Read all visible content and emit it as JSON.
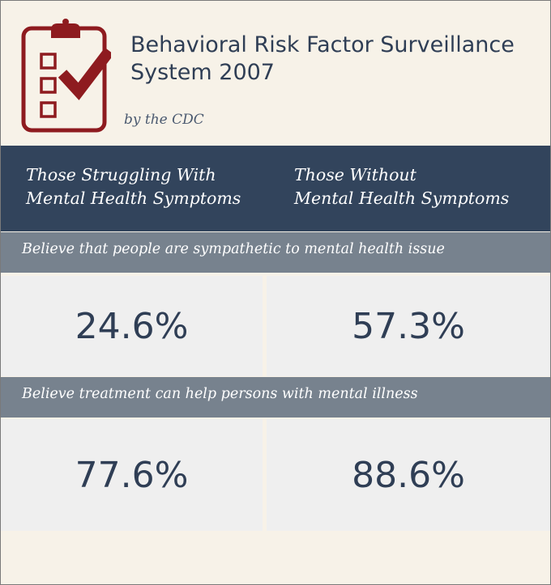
{
  "header": {
    "title_line1": "Behavioral Risk Factor Surveillance",
    "title_line2": "System 2007",
    "byline": "by the CDC",
    "logo_icon": "clipboard-checklist-icon",
    "logo_color": "#8e1b1f"
  },
  "columns": {
    "left_line1": "Those Struggling With",
    "left_line2": "Mental Health Symptoms",
    "right_line1": "Those Without",
    "right_line2": "Mental Health Symptoms"
  },
  "rows": [
    {
      "question": "Believe that people are sympathetic to mental health issue",
      "with_symptoms": "24.6%",
      "without_symptoms": "57.3%"
    },
    {
      "question": "Believe treatment can help persons with mental illness",
      "with_symptoms": "77.6%",
      "without_symptoms": "88.6%"
    }
  ],
  "colors": {
    "background": "#f7f2e8",
    "header_band": "#32445c",
    "question_band": "#77828e",
    "cell": "#efefef",
    "text": "#2f3e55"
  }
}
